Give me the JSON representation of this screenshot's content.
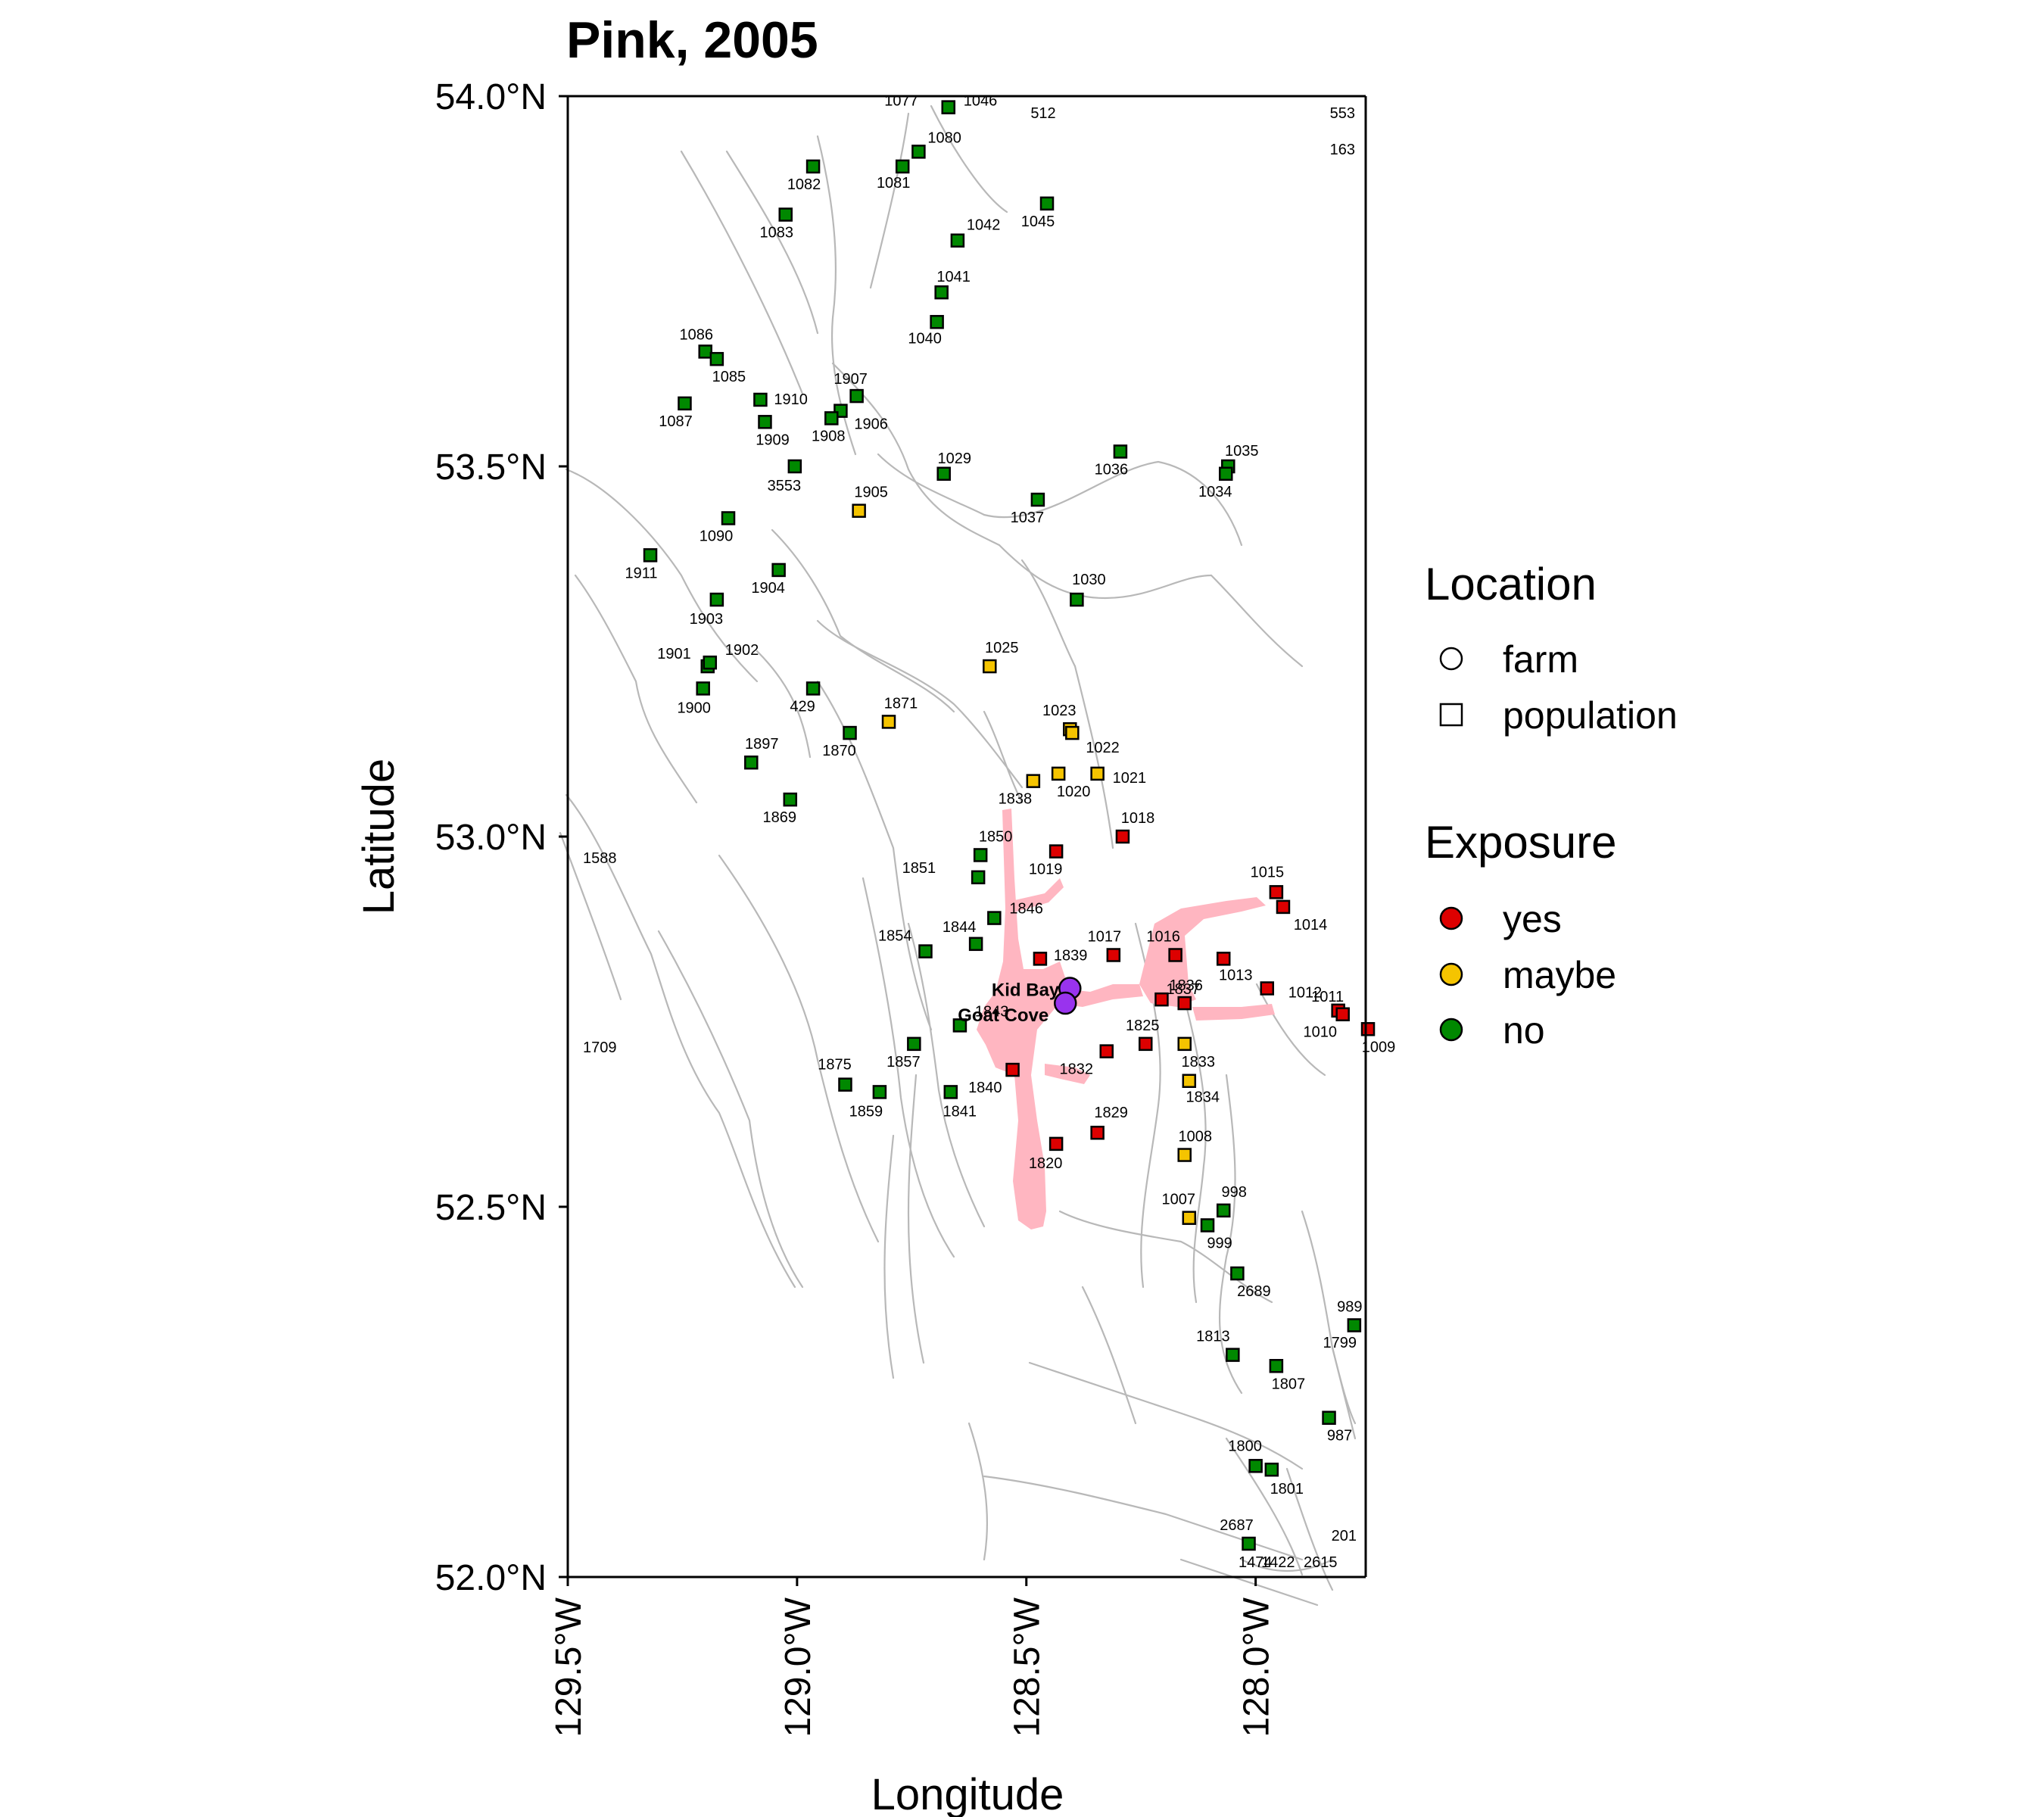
{
  "title": "Pink, 2005",
  "axes": {
    "xlabel": "Longitude",
    "ylabel": "Latitude",
    "x_ticks": [
      "129.5°W",
      "129.0°W",
      "128.5°W",
      "128.0°W"
    ],
    "y_ticks": [
      "54.0°N",
      "53.5°N",
      "53.0°N",
      "52.5°N",
      "52.0°N"
    ]
  },
  "legend": {
    "location_title": "Location",
    "location_items": [
      "farm",
      "population"
    ],
    "exposure_title": "Exposure",
    "exposure_items": [
      "yes",
      "maybe",
      "no"
    ]
  },
  "colors": {
    "yes": "#dd0000",
    "maybe": "#f5c400",
    "no": "#008800",
    "farm": "#9933ee",
    "pink_area": "#ffb6c1",
    "coastline": "#b8b8b8"
  },
  "chart_data": {
    "type": "scatter",
    "title": "Pink, 2005",
    "xlabel": "Longitude",
    "ylabel": "Latitude",
    "xlim": [
      -129.5,
      -127.76
    ],
    "ylim": [
      52.0,
      54.0
    ],
    "farms": [
      {
        "name": "Kid Bay",
        "lon": -128.405,
        "lat": 52.795
      },
      {
        "name": "Goat Cove",
        "lon": -128.415,
        "lat": 52.775
      }
    ],
    "populations": [
      {
        "id": "1077",
        "lon": -128.67,
        "lat": 53.985,
        "exposure": "no"
      },
      {
        "id": "1046",
        "lon": -128.67,
        "lat": 53.985,
        "exposure": "no"
      },
      {
        "id": "1080",
        "lon": -128.735,
        "lat": 53.925,
        "exposure": "no"
      },
      {
        "id": "1081",
        "lon": -128.77,
        "lat": 53.905,
        "exposure": "no"
      },
      {
        "id": "1082",
        "lon": -128.965,
        "lat": 53.905,
        "exposure": "no"
      },
      {
        "id": "1083",
        "lon": -129.025,
        "lat": 53.84,
        "exposure": "no"
      },
      {
        "id": "1045",
        "lon": -128.455,
        "lat": 53.855,
        "exposure": "no"
      },
      {
        "id": "1042",
        "lon": -128.65,
        "lat": 53.805,
        "exposure": "no"
      },
      {
        "id": "1041",
        "lon": -128.685,
        "lat": 53.735,
        "exposure": "no"
      },
      {
        "id": "1040",
        "lon": -128.695,
        "lat": 53.695,
        "exposure": "no"
      },
      {
        "id": "1086",
        "lon": -129.2,
        "lat": 53.655,
        "exposure": "no"
      },
      {
        "id": "1085",
        "lon": -129.175,
        "lat": 53.645,
        "exposure": "no"
      },
      {
        "id": "1087",
        "lon": -129.245,
        "lat": 53.585,
        "exposure": "no"
      },
      {
        "id": "1910",
        "lon": -129.08,
        "lat": 53.59,
        "exposure": "no"
      },
      {
        "id": "1909",
        "lon": -129.07,
        "lat": 53.56,
        "exposure": "no"
      },
      {
        "id": "1907",
        "lon": -128.87,
        "lat": 53.595,
        "exposure": "no"
      },
      {
        "id": "1906",
        "lon": -128.905,
        "lat": 53.575,
        "exposure": "no"
      },
      {
        "id": "1908",
        "lon": -128.925,
        "lat": 53.565,
        "exposure": "no"
      },
      {
        "id": "3553",
        "lon": -129.005,
        "lat": 53.5,
        "exposure": "no"
      },
      {
        "id": "1029",
        "lon": -128.68,
        "lat": 53.49,
        "exposure": "no"
      },
      {
        "id": "1036",
        "lon": -128.295,
        "lat": 53.52,
        "exposure": "no"
      },
      {
        "id": "1035",
        "lon": -128.06,
        "lat": 53.5,
        "exposure": "no"
      },
      {
        "id": "1034",
        "lon": -128.065,
        "lat": 53.49,
        "exposure": "no"
      },
      {
        "id": "1905",
        "lon": -128.865,
        "lat": 53.44,
        "exposure": "maybe"
      },
      {
        "id": "1037",
        "lon": -128.475,
        "lat": 53.455,
        "exposure": "no"
      },
      {
        "id": "1090",
        "lon": -129.15,
        "lat": 53.43,
        "exposure": "no"
      },
      {
        "id": "1911",
        "lon": -129.32,
        "lat": 53.38,
        "exposure": "no"
      },
      {
        "id": "1904",
        "lon": -129.04,
        "lat": 53.36,
        "exposure": "no"
      },
      {
        "id": "1030",
        "lon": -128.39,
        "lat": 53.32,
        "exposure": "no"
      },
      {
        "id": "1903",
        "lon": -129.175,
        "lat": 53.32,
        "exposure": "no"
      },
      {
        "id": "1901",
        "lon": -129.195,
        "lat": 53.23,
        "exposure": "no"
      },
      {
        "id": "1902",
        "lon": -129.19,
        "lat": 53.235,
        "exposure": "no"
      },
      {
        "id": "1900",
        "lon": -129.205,
        "lat": 53.2,
        "exposure": "no"
      },
      {
        "id": "1025",
        "lon": -128.58,
        "lat": 53.23,
        "exposure": "maybe"
      },
      {
        "id": "429",
        "lon": -128.965,
        "lat": 53.2,
        "exposure": "no"
      },
      {
        "id": "1871",
        "lon": -128.8,
        "lat": 53.155,
        "exposure": "maybe"
      },
      {
        "id": "1870",
        "lon": -128.885,
        "lat": 53.14,
        "exposure": "no"
      },
      {
        "id": "1023",
        "lon": -128.405,
        "lat": 53.145,
        "exposure": "maybe"
      },
      {
        "id": "1897",
        "lon": -129.1,
        "lat": 53.1,
        "exposure": "no"
      },
      {
        "id": "1022",
        "lon": -128.4,
        "lat": 53.14,
        "exposure": "maybe"
      },
      {
        "id": "1020",
        "lon": -128.43,
        "lat": 53.085,
        "exposure": "maybe"
      },
      {
        "id": "1021",
        "lon": -128.345,
        "lat": 53.085,
        "exposure": "maybe"
      },
      {
        "id": "1838",
        "lon": -128.485,
        "lat": 53.075,
        "exposure": "maybe"
      },
      {
        "id": "1869",
        "lon": -129.015,
        "lat": 53.05,
        "exposure": "no"
      },
      {
        "id": "1018",
        "lon": -128.29,
        "lat": 53.0,
        "exposure": "yes"
      },
      {
        "id": "1850",
        "lon": -128.6,
        "lat": 52.975,
        "exposure": "no"
      },
      {
        "id": "1019",
        "lon": -128.435,
        "lat": 52.98,
        "exposure": "yes"
      },
      {
        "id": "1851",
        "lon": -128.605,
        "lat": 52.945,
        "exposure": "no"
      },
      {
        "id": "1015",
        "lon": -127.955,
        "lat": 52.925,
        "exposure": "yes"
      },
      {
        "id": "1014",
        "lon": -127.94,
        "lat": 52.905,
        "exposure": "yes"
      },
      {
        "id": "1846",
        "lon": -128.57,
        "lat": 52.89,
        "exposure": "no"
      },
      {
        "id": "1844",
        "lon": -128.61,
        "lat": 52.855,
        "exposure": "no"
      },
      {
        "id": "1854",
        "lon": -128.72,
        "lat": 52.845,
        "exposure": "no"
      },
      {
        "id": "1839",
        "lon": -128.47,
        "lat": 52.835,
        "exposure": "yes"
      },
      {
        "id": "1017",
        "lon": -128.31,
        "lat": 52.84,
        "exposure": "yes"
      },
      {
        "id": "1016",
        "lon": -128.175,
        "lat": 52.84,
        "exposure": "yes"
      },
      {
        "id": "1013",
        "lon": -128.07,
        "lat": 52.835,
        "exposure": "yes"
      },
      {
        "id": "1836",
        "lon": -128.205,
        "lat": 52.78,
        "exposure": "yes"
      },
      {
        "id": "1837",
        "lon": -128.155,
        "lat": 52.775,
        "exposure": "yes"
      },
      {
        "id": "1011",
        "lon": -127.82,
        "lat": 52.765,
        "exposure": "yes"
      },
      {
        "id": "1012",
        "lon": -127.975,
        "lat": 52.795,
        "exposure": "yes"
      },
      {
        "id": "1010",
        "lon": -127.81,
        "lat": 52.76,
        "exposure": "yes"
      },
      {
        "id": "1009",
        "lon": -127.755,
        "lat": 52.74,
        "exposure": "yes"
      },
      {
        "id": "1843",
        "lon": -128.645,
        "lat": 52.745,
        "exposure": "no"
      },
      {
        "id": "1825",
        "lon": -128.24,
        "lat": 52.72,
        "exposure": "yes"
      },
      {
        "id": "1833",
        "lon": -128.155,
        "lat": 52.72,
        "exposure": "maybe"
      },
      {
        "id": "1832",
        "lon": -128.325,
        "lat": 52.71,
        "exposure": "yes"
      },
      {
        "id": "1857",
        "lon": -128.745,
        "lat": 52.72,
        "exposure": "no"
      },
      {
        "id": "1840",
        "lon": -128.53,
        "lat": 52.685,
        "exposure": "yes"
      },
      {
        "id": "1834",
        "lon": -128.145,
        "lat": 52.67,
        "exposure": "maybe"
      },
      {
        "id": "1875",
        "lon": -128.895,
        "lat": 52.665,
        "exposure": "no"
      },
      {
        "id": "1859",
        "lon": -128.82,
        "lat": 52.655,
        "exposure": "no"
      },
      {
        "id": "1841",
        "lon": -128.665,
        "lat": 52.655,
        "exposure": "no"
      },
      {
        "id": "1829",
        "lon": -128.345,
        "lat": 52.6,
        "exposure": "yes"
      },
      {
        "id": "1820",
        "lon": -128.435,
        "lat": 52.585,
        "exposure": "yes"
      },
      {
        "id": "1008",
        "lon": -128.155,
        "lat": 52.57,
        "exposure": "maybe"
      },
      {
        "id": "998",
        "lon": -128.07,
        "lat": 52.495,
        "exposure": "no"
      },
      {
        "id": "1007",
        "lon": -128.145,
        "lat": 52.485,
        "exposure": "maybe"
      },
      {
        "id": "999",
        "lon": -128.105,
        "lat": 52.475,
        "exposure": "no"
      },
      {
        "id": "2689",
        "lon": -128.04,
        "lat": 52.41,
        "exposure": "no"
      },
      {
        "id": "989",
        "lon": -127.785,
        "lat": 52.34,
        "exposure": "no"
      },
      {
        "id": "1813",
        "lon": -128.05,
        "lat": 52.3,
        "exposure": "no"
      },
      {
        "id": "1807",
        "lon": -127.955,
        "lat": 52.285,
        "exposure": "no"
      },
      {
        "id": "987",
        "lon": -127.84,
        "lat": 52.215,
        "exposure": "no"
      },
      {
        "id": "1800",
        "lon": -128.0,
        "lat": 52.15,
        "exposure": "no"
      },
      {
        "id": "1801",
        "lon": -127.965,
        "lat": 52.145,
        "exposure": "no"
      },
      {
        "id": "2687",
        "lon": -128.015,
        "lat": 52.045,
        "exposure": "no"
      }
    ],
    "edge_labels": [
      "512",
      "553",
      "163",
      "1588",
      "1709",
      "1799",
      "201",
      "1474",
      "1422",
      "2615"
    ]
  }
}
